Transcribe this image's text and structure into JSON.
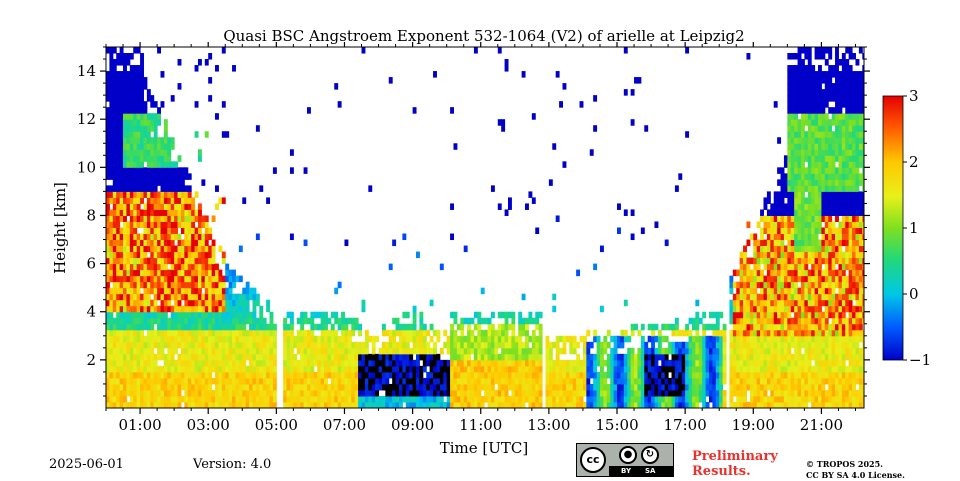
{
  "chart_data": {
    "type": "heatmap",
    "title": "Quasi BSC Angstroem Exponent 532-1064 (V2) of arielle at Leipzig2",
    "xlabel": "Time [UTC]",
    "ylabel": "Height [km]",
    "x_unit": "hours UTC",
    "xlim": [
      0.0,
      22.25
    ],
    "ylim": [
      0,
      15
    ],
    "x_ticks": [
      "01:00",
      "03:00",
      "05:00",
      "07:00",
      "09:00",
      "11:00",
      "13:00",
      "15:00",
      "17:00",
      "19:00",
      "21:00"
    ],
    "x_tick_values": [
      1,
      3,
      5,
      7,
      9,
      11,
      13,
      15,
      17,
      19,
      21
    ],
    "y_ticks": [
      "2",
      "4",
      "6",
      "8",
      "10",
      "12",
      "14"
    ],
    "y_tick_values": [
      2,
      4,
      6,
      8,
      10,
      12,
      14
    ],
    "colorbar": {
      "range": [
        -1,
        3
      ],
      "ticks": [
        "−1",
        "0",
        "1",
        "2",
        "3"
      ],
      "tick_values": [
        -1,
        0,
        1,
        2,
        3
      ],
      "colormap": "jet-like (blue-cyan-green-yellow-red)"
    },
    "missing_value_color": "#000000",
    "data_gaps_utc": [
      [
        5.0,
        5.15
      ],
      [
        12.75,
        12.9
      ],
      [
        18.15,
        18.3
      ]
    ],
    "regions": [
      {
        "time": [
          0.0,
          3.0
        ],
        "height": [
          0,
          4
        ],
        "value": 1.8,
        "note": "boundary layer, yellow-orange"
      },
      {
        "time": [
          0.0,
          3.5
        ],
        "height": [
          4,
          8
        ],
        "value": 2.0,
        "note": "noisy orange-red"
      },
      {
        "time": [
          0.5,
          3.0
        ],
        "height": [
          10,
          12
        ],
        "value": 0.6,
        "note": "green cloud layer"
      },
      {
        "time": [
          5.1,
          7.3
        ],
        "height": [
          0,
          3
        ],
        "value": 1.9,
        "note": "orange layer"
      },
      {
        "time": [
          7.3,
          10.0
        ],
        "height": [
          0,
          2
        ],
        "value": -1.0,
        "note": "dark blue / missing"
      },
      {
        "time": [
          10.0,
          12.7
        ],
        "height": [
          0,
          3.5
        ],
        "value": 1.6,
        "note": "orange to green"
      },
      {
        "time": [
          14.0,
          18.0
        ],
        "height": [
          0,
          3
        ],
        "value": 0.3,
        "note": "green-blue, missing patches"
      },
      {
        "time": [
          18.3,
          22.25
        ],
        "height": [
          0,
          6
        ],
        "value": 1.8,
        "note": "yellow-orange-red"
      },
      {
        "time": [
          20.0,
          22.25
        ],
        "height": [
          9,
          12
        ],
        "value": 0.8,
        "note": "green cloud layer"
      }
    ]
  },
  "footer": {
    "date": "2025-06-01",
    "version": "Version: 4.0",
    "license_badge": {
      "cc": "cc",
      "by": "BY",
      "sa": "SA"
    },
    "preliminary_line1": "Preliminary",
    "preliminary_line2": "Results.",
    "copyright_line1": "© TROPOS 2025.",
    "copyright_line2": "CC BY SA 4.0 License."
  }
}
